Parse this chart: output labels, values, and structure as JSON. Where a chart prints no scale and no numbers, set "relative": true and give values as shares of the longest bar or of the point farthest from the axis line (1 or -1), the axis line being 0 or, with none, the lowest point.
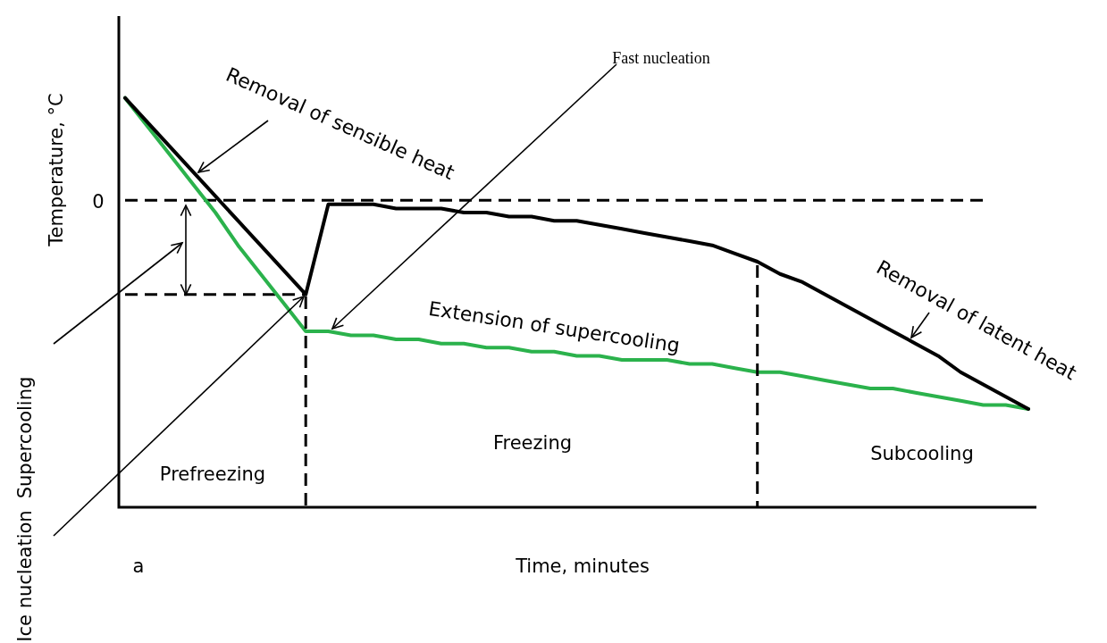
{
  "chart_data": {
    "type": "line",
    "relative": true,
    "xlabel": "Time, minutes",
    "ylabel": "Temperature, °C",
    "tick_labels": false,
    "legend": false,
    "marker": "none",
    "line_style": "solid",
    "categories": [
      null,
      null,
      null,
      null,
      null,
      null,
      null,
      null,
      null,
      null,
      null,
      null,
      null,
      null,
      null,
      null,
      null,
      null,
      null,
      null,
      null,
      null,
      null,
      null,
      null,
      null,
      null,
      null,
      null,
      null,
      null,
      null,
      null,
      null,
      null,
      null,
      null,
      null,
      null,
      null,
      null
    ],
    "series": [
      {
        "color": "#000000",
        "values": [
          1.0,
          0.94,
          0.88,
          0.82,
          0.76,
          0.7,
          0.64,
          0.58,
          0.52,
          0.74,
          0.74,
          0.74,
          0.73,
          0.73,
          0.73,
          0.72,
          0.72,
          0.71,
          0.71,
          0.7,
          0.7,
          0.69,
          0.68,
          0.67,
          0.66,
          0.65,
          0.64,
          0.62,
          0.6,
          0.57,
          0.55,
          0.52,
          0.49,
          0.46,
          0.43,
          0.4,
          0.37,
          0.33,
          0.3,
          0.27,
          0.24
        ]
      },
      {
        "color": "#2bb24c",
        "values": [
          1.0,
          0.93,
          0.86,
          0.79,
          0.72,
          0.64,
          0.57,
          0.5,
          0.43,
          0.43,
          0.42,
          0.42,
          0.41,
          0.41,
          0.4,
          0.4,
          0.39,
          0.39,
          0.38,
          0.38,
          0.37,
          0.37,
          0.36,
          0.36,
          0.36,
          0.35,
          0.35,
          0.34,
          0.33,
          0.33,
          0.32,
          0.31,
          0.3,
          0.29,
          0.29,
          0.28,
          0.27,
          0.26,
          0.25,
          0.25,
          0.24
        ]
      },
      {
        "color": "#000000",
        "line_style": "dashed",
        "values": [
          0.75,
          0.75,
          0.75,
          0.75,
          0.75,
          0.75,
          0.75,
          0.75,
          0.75,
          0.75,
          0.75,
          0.75,
          0.75,
          0.75,
          0.75,
          0.75,
          0.75,
          0.75,
          0.75,
          0.75,
          0.75,
          0.75,
          0.75,
          0.75,
          0.75,
          0.75,
          0.75,
          0.75,
          0.75,
          0.75,
          0.75,
          0.75,
          0.75,
          0.75,
          0.75,
          0.75,
          0.75,
          0.75,
          0.75,
          null,
          null
        ]
      },
      {
        "color": "#000000",
        "line_style": "dashed",
        "values": [
          0.52,
          0.52,
          0.52,
          0.52,
          0.52,
          0.52,
          0.52,
          0.52,
          0.52,
          null,
          null,
          null,
          null,
          null,
          null,
          null,
          null,
          null,
          null,
          null,
          null,
          null,
          null,
          null,
          null,
          null,
          null,
          null,
          null,
          null,
          null,
          null,
          null,
          null,
          null,
          null,
          null,
          null,
          null,
          null,
          null
        ]
      }
    ],
    "annotations": [
      "Removal of sensible heat",
      "Fast nucleation",
      "Extension of supercooling",
      "Removal of latent heat",
      "Supercooling",
      "Ice nucleation",
      "Prefreezing",
      "Freezing",
      "Subcooling",
      "a",
      "0"
    ]
  }
}
